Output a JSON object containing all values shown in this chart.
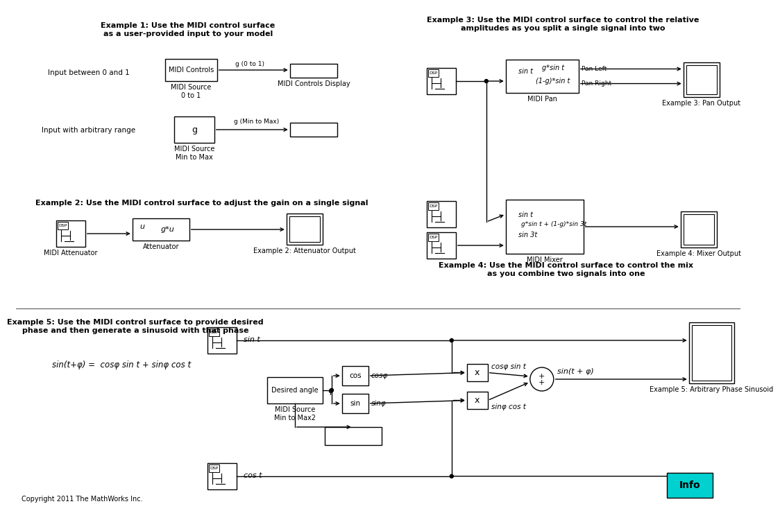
{
  "bg_color": "#ffffff",
  "ex1_title": "Example 1: Use the MIDI control surface\nas a user-provided input to your model",
  "ex2_title": "Example 2: Use the MIDI control surface to adjust the gain on a single signal",
  "ex3_title": "Example 3: Use the MIDI control surface to control the relative\namplitudes as you split a single signal into two",
  "ex4_title": "Example 4: Use the MIDI control surface to control the mix\nas you combine two signals into one",
  "ex5_title": "Example 5: Use the MIDI control surface to provide desired\nphase and then generate a sinusoid with that phase",
  "ex5_formula": "sin(t+φ) =  cosφ sin t + sinφ cos t",
  "copyright": "Copyright 2011 The MathWorks Inc.",
  "info_color": "#00d0d0"
}
